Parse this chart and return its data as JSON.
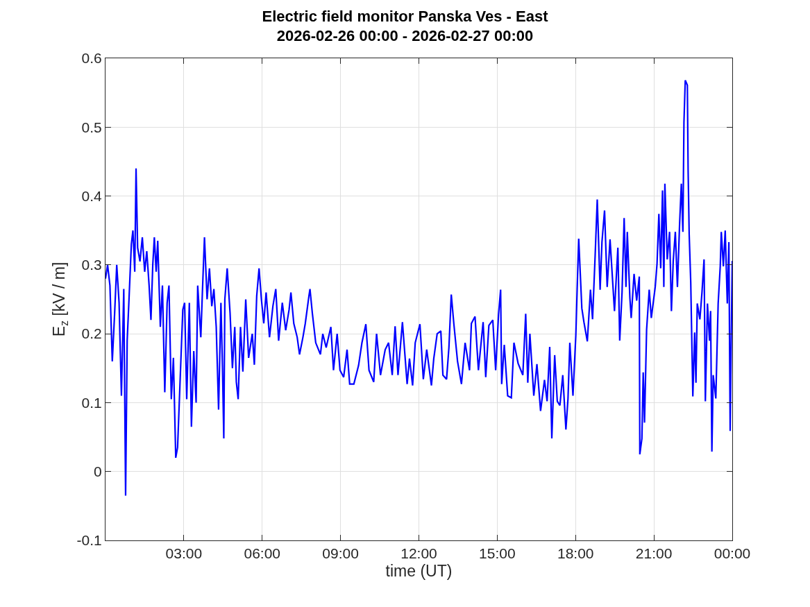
{
  "chart_data": {
    "type": "line",
    "title": "Electric field monitor Panska Ves - East\n2026-02-26 00:00 - 2026-02-27 00:00",
    "xlabel": "time (UT)",
    "ylabel": "E$_{z}$ [kV / m]",
    "xlim": [
      0,
      24
    ],
    "ylim": [
      -0.1,
      0.6
    ],
    "xticks": [
      {
        "value": 3,
        "label": "03:00"
      },
      {
        "value": 6,
        "label": "06:00"
      },
      {
        "value": 9,
        "label": "09:00"
      },
      {
        "value": 12,
        "label": "12:00"
      },
      {
        "value": 15,
        "label": "15:00"
      },
      {
        "value": 18,
        "label": "18:00"
      },
      {
        "value": 21,
        "label": "21:00"
      },
      {
        "value": 24,
        "label": "00:00"
      }
    ],
    "yticks": [
      -0.1,
      0,
      0.1,
      0.2,
      0.3,
      0.4,
      0.5,
      0.6
    ],
    "grid": true,
    "marker": "none",
    "line_style": "solid",
    "series": [
      {
        "color": "#0000ff",
        "x": [
          0,
          0.08,
          0.17,
          0.26,
          0.35,
          0.43,
          0.52,
          0.61,
          0.7,
          0.77,
          0.83,
          0.9,
          0.99,
          1.05,
          1.12,
          1.17,
          1.23,
          1.32,
          1.41,
          1.5,
          1.58,
          1.67,
          1.74,
          1.81,
          1.87,
          1.94,
          2.0,
          2.1,
          2.18,
          2.27,
          2.36,
          2.43,
          2.52,
          2.6,
          2.69,
          2.76,
          2.85,
          2.96,
          3.03,
          3.11,
          3.21,
          3.29,
          3.38,
          3.47,
          3.53,
          3.65,
          3.71,
          3.79,
          3.89,
          3.98,
          4.07,
          4.15,
          4.24,
          4.33,
          4.42,
          4.48,
          4.53,
          4.57,
          4.66,
          4.77,
          4.86,
          4.95,
          5.01,
          5.08,
          5.17,
          5.26,
          5.37,
          5.48,
          5.62,
          5.7,
          5.79,
          5.88,
          5.97,
          6.06,
          6.15,
          6.28,
          6.41,
          6.52,
          6.63,
          6.77,
          6.9,
          7.03,
          7.1,
          7.21,
          7.34,
          7.43,
          7.56,
          7.65,
          7.79,
          7.83,
          7.92,
          8.05,
          8.23,
          8.32,
          8.45,
          8.63,
          8.73,
          8.87,
          8.98,
          9.12,
          9.25,
          9.35,
          9.51,
          9.69,
          9.82,
          9.97,
          10.09,
          10.27,
          10.38,
          10.53,
          10.71,
          10.84,
          10.98,
          11.09,
          11.2,
          11.37,
          11.55,
          11.64,
          11.76,
          11.86,
          12.04,
          12.17,
          12.3,
          12.48,
          12.57,
          12.7,
          12.84,
          12.92,
          13.06,
          13.15,
          13.24,
          13.34,
          13.48,
          13.63,
          13.77,
          13.94,
          14.01,
          14.15,
          14.28,
          14.46,
          14.56,
          14.68,
          14.83,
          14.94,
          15.05,
          15.13,
          15.17,
          15.27,
          15.4,
          15.54,
          15.64,
          15.8,
          15.98,
          16.09,
          16.17,
          16.25,
          16.4,
          16.52,
          16.66,
          16.81,
          16.91,
          17.01,
          17.09,
          17.2,
          17.3,
          17.4,
          17.51,
          17.63,
          17.71,
          17.78,
          17.9,
          18.01,
          18.06,
          18.12,
          18.24,
          18.32,
          18.45,
          18.57,
          18.65,
          18.75,
          18.83,
          18.94,
          19.01,
          19.11,
          19.21,
          19.32,
          19.49,
          19.62,
          19.69,
          19.78,
          19.86,
          19.93,
          19.98,
          20.08,
          20.13,
          20.24,
          20.34,
          20.44,
          20.46,
          20.54,
          20.59,
          20.64,
          20.72,
          20.82,
          20.9,
          21.05,
          21.12,
          21.19,
          21.26,
          21.33,
          21.38,
          21.42,
          21.51,
          21.6,
          21.67,
          21.74,
          21.82,
          21.9,
          21.98,
          22.05,
          22.11,
          22.15,
          22.2,
          22.28,
          22.31,
          22.35,
          22.41,
          22.49,
          22.56,
          22.61,
          22.66,
          22.76,
          22.84,
          22.92,
          22.97,
          23.05,
          23.13,
          23.17,
          23.22,
          23.27,
          23.37,
          23.46,
          23.54,
          23.58,
          23.66,
          23.73,
          23.81,
          23.87,
          23.92,
          23.97,
          24.0
        ],
        "values": [
          0.28,
          0.3,
          0.27,
          0.16,
          0.23,
          0.3,
          0.245,
          0.11,
          0.265,
          -0.035,
          0.19,
          0.25,
          0.33,
          0.35,
          0.29,
          0.44,
          0.325,
          0.305,
          0.34,
          0.29,
          0.32,
          0.27,
          0.22,
          0.3,
          0.34,
          0.29,
          0.335,
          0.21,
          0.27,
          0.115,
          0.245,
          0.27,
          0.105,
          0.165,
          0.02,
          0.035,
          0.125,
          0.235,
          0.245,
          0.105,
          0.245,
          0.065,
          0.175,
          0.1,
          0.27,
          0.195,
          0.26,
          0.34,
          0.25,
          0.295,
          0.24,
          0.265,
          0.21,
          0.09,
          0.245,
          0.15,
          0.048,
          0.25,
          0.295,
          0.23,
          0.15,
          0.21,
          0.13,
          0.105,
          0.21,
          0.145,
          0.25,
          0.165,
          0.2,
          0.155,
          0.255,
          0.295,
          0.25,
          0.215,
          0.26,
          0.195,
          0.24,
          0.265,
          0.19,
          0.245,
          0.205,
          0.235,
          0.26,
          0.215,
          0.195,
          0.17,
          0.195,
          0.215,
          0.255,
          0.265,
          0.23,
          0.187,
          0.17,
          0.2,
          0.18,
          0.21,
          0.147,
          0.2,
          0.147,
          0.137,
          0.177,
          0.127,
          0.127,
          0.154,
          0.187,
          0.214,
          0.147,
          0.13,
          0.2,
          0.14,
          0.177,
          0.187,
          0.14,
          0.211,
          0.14,
          0.217,
          0.127,
          0.164,
          0.125,
          0.187,
          0.214,
          0.134,
          0.177,
          0.125,
          0.164,
          0.2,
          0.204,
          0.14,
          0.134,
          0.18,
          0.257,
          0.214,
          0.16,
          0.127,
          0.187,
          0.147,
          0.215,
          0.225,
          0.147,
          0.217,
          0.137,
          0.212,
          0.22,
          0.147,
          0.228,
          0.264,
          0.127,
          0.184,
          0.11,
          0.107,
          0.187,
          0.157,
          0.14,
          0.229,
          0.129,
          0.2,
          0.11,
          0.156,
          0.088,
          0.133,
          0.102,
          0.181,
          0.048,
          0.169,
          0.102,
          0.096,
          0.14,
          0.061,
          0.106,
          0.187,
          0.11,
          0.198,
          0.264,
          0.338,
          0.237,
          0.217,
          0.189,
          0.264,
          0.221,
          0.314,
          0.395,
          0.264,
          0.333,
          0.379,
          0.268,
          0.337,
          0.233,
          0.325,
          0.19,
          0.26,
          0.368,
          0.268,
          0.348,
          0.252,
          0.223,
          0.287,
          0.248,
          0.283,
          0.025,
          0.048,
          0.144,
          0.071,
          0.206,
          0.264,
          0.223,
          0.268,
          0.302,
          0.374,
          0.295,
          0.408,
          0.268,
          0.418,
          0.308,
          0.348,
          0.233,
          0.306,
          0.348,
          0.268,
          0.356,
          0.418,
          0.348,
          0.507,
          0.568,
          0.561,
          0.437,
          0.345,
          0.275,
          0.109,
          0.202,
          0.129,
          0.244,
          0.221,
          0.26,
          0.308,
          0.102,
          0.244,
          0.19,
          0.233,
          0.029,
          0.14,
          0.106,
          0.244,
          0.298,
          0.348,
          0.298,
          0.35,
          0.244,
          0.333,
          0.059,
          0.221,
          0.306
        ]
      }
    ]
  }
}
